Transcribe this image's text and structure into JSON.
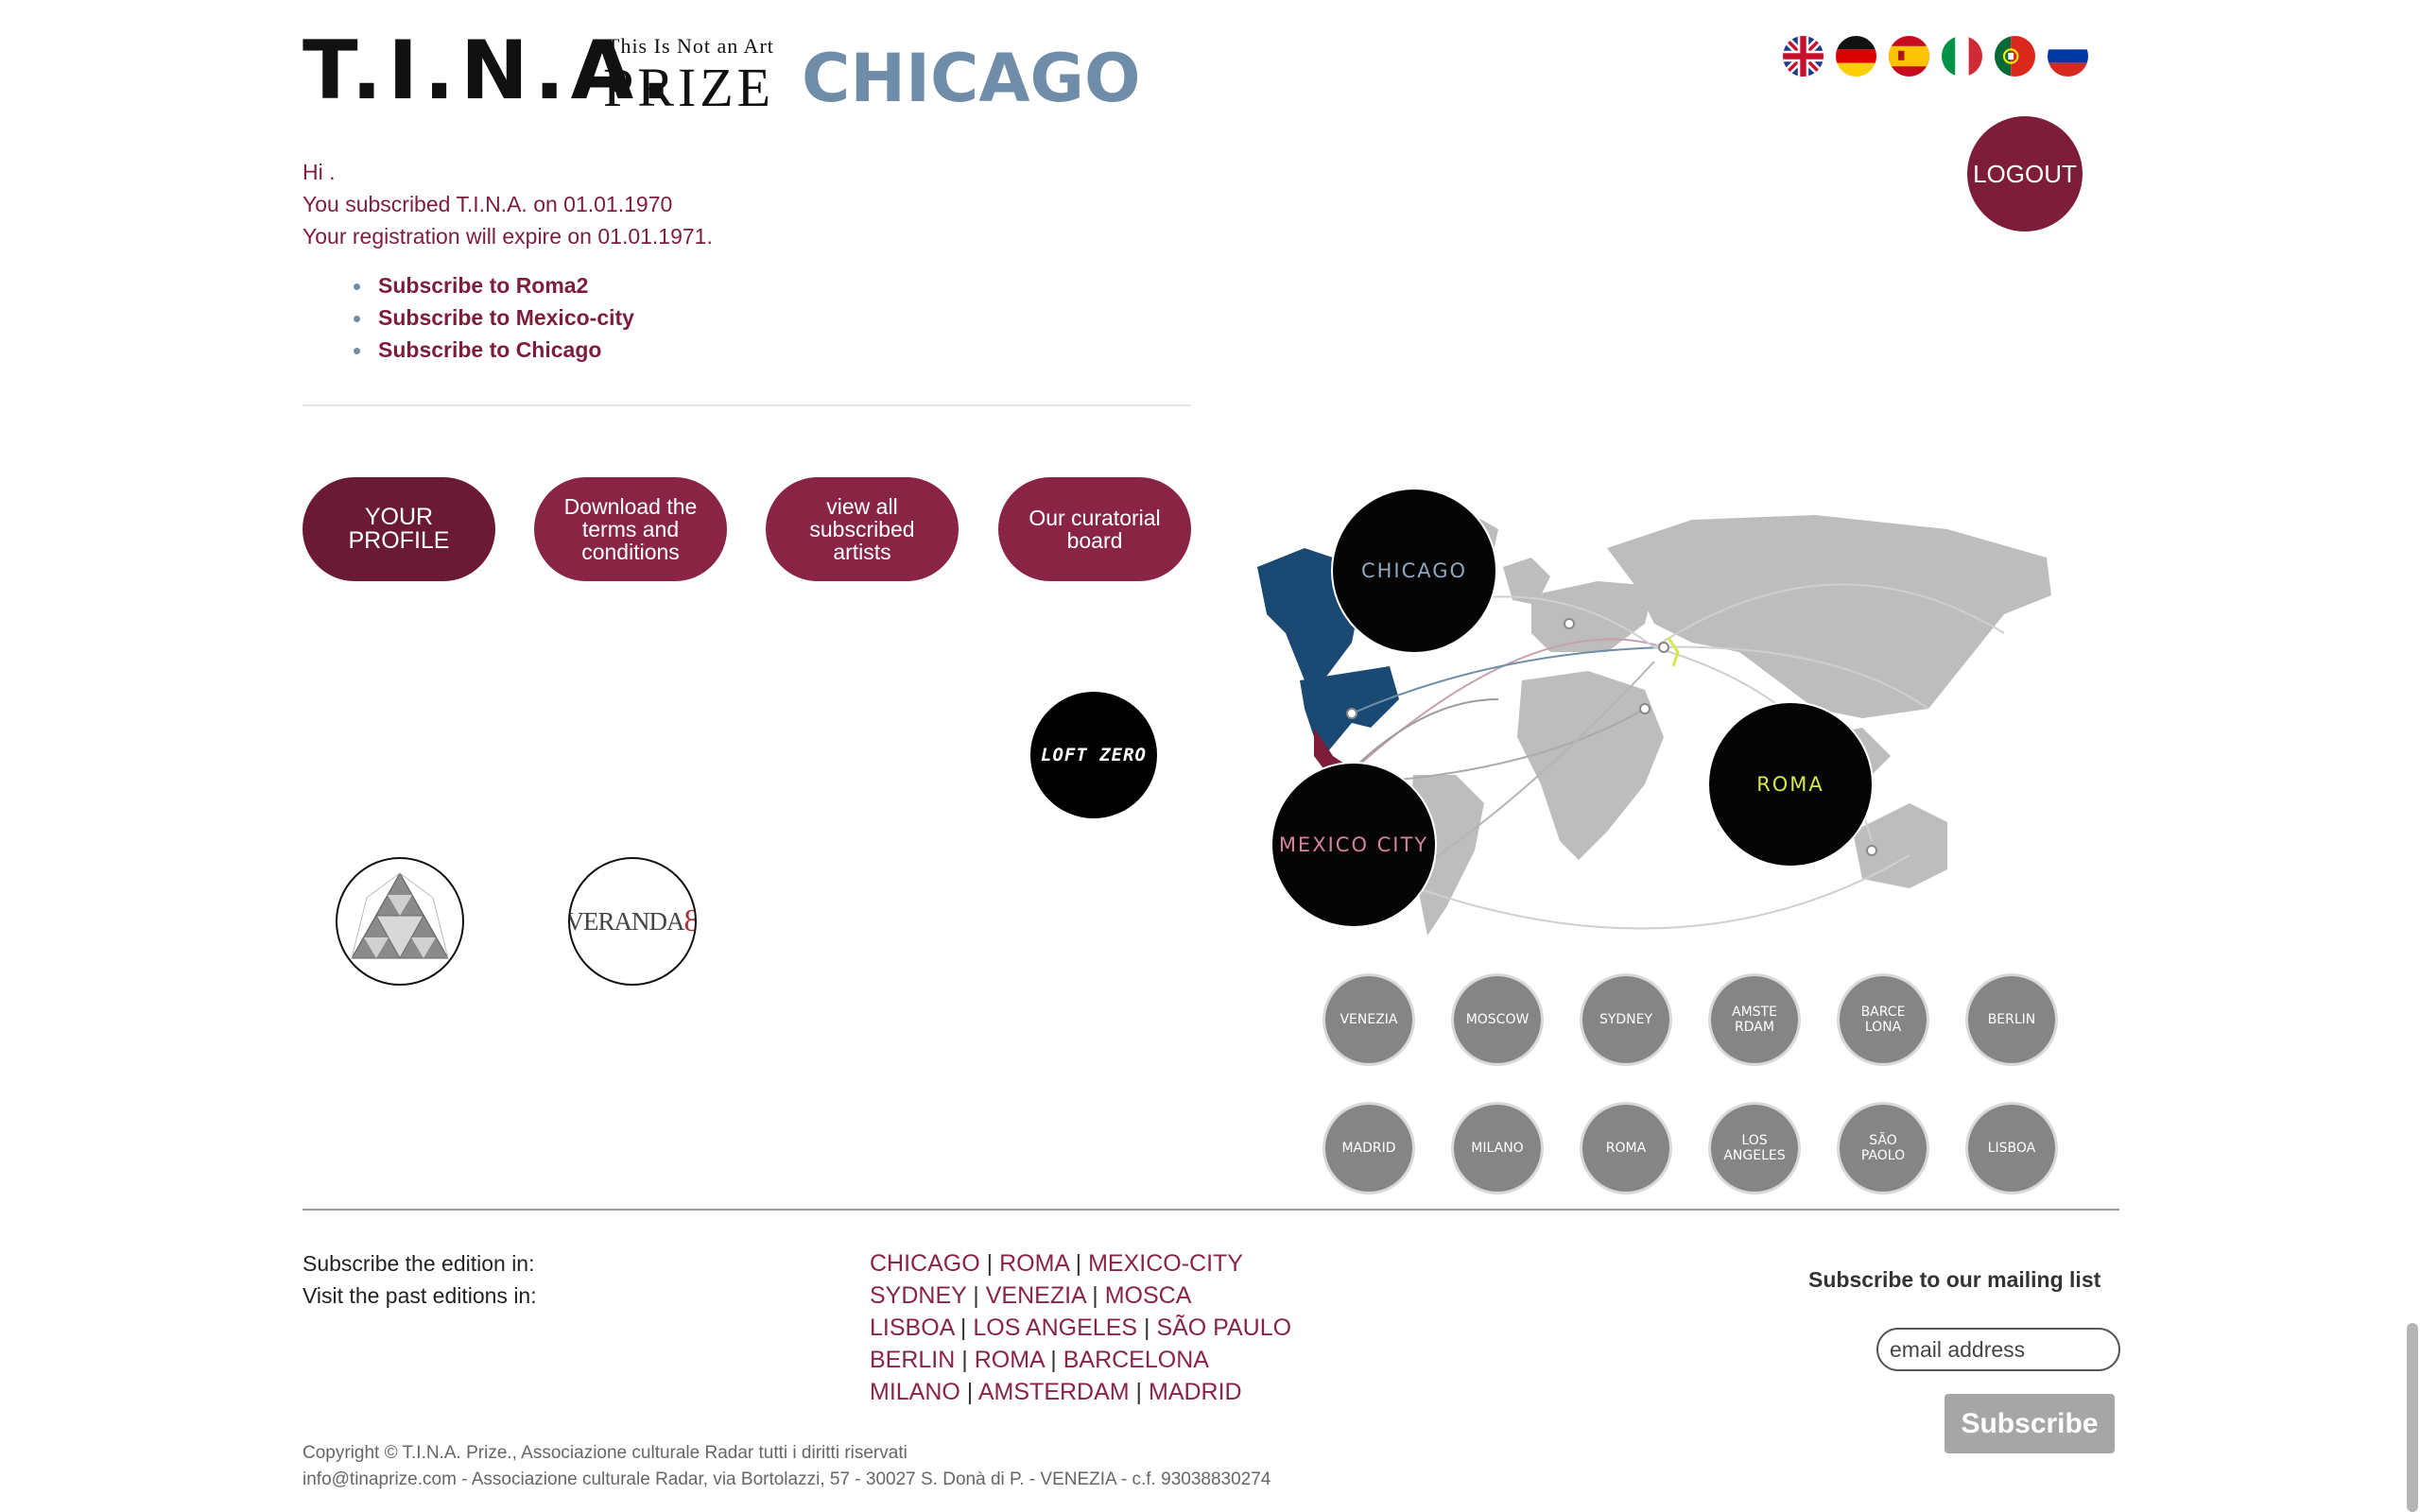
{
  "header": {
    "logo_tina": "T.I.N.A.",
    "logo_tagline": "This Is Not an Art",
    "logo_prize": "PRIZE",
    "logo_city": "CHICAGO",
    "logout_label": "LOGOUT",
    "languages": [
      "english",
      "german",
      "spanish",
      "italian",
      "portuguese",
      "russian"
    ]
  },
  "greeting": {
    "hi": "Hi .",
    "subscribed": "You subscribed T.I.N.A. on 01.01.1970",
    "expire": "Your registration will expire on 01.01.1971."
  },
  "subscribe_links": [
    "Subscribe to Roma2",
    "Subscribe to Mexico-city",
    "Subscribe to Chicago"
  ],
  "buttons": {
    "profile": "YOUR PROFILE",
    "terms": "Download the terms and conditions",
    "artists": "view all subscribed artists",
    "board": "Our curatorial board"
  },
  "partners": {
    "loft_zero": "LOFT ZERO",
    "veranda": "VERANDA",
    "veranda_num": "8"
  },
  "map": {
    "current_editions": [
      "CHICAGO",
      "MEXICO CITY",
      "ROMA"
    ],
    "past_editions": [
      [
        "VENEZIA"
      ],
      [
        "MOSCOW"
      ],
      [
        "SYDNEY"
      ],
      [
        "AMSTE",
        "RDAM"
      ],
      [
        "BARCE",
        "LONA"
      ],
      [
        "BERLIN"
      ],
      [
        "MADRID"
      ],
      [
        "MILANO"
      ],
      [
        "ROMA"
      ],
      [
        "LOS",
        "ANGELES"
      ],
      [
        "SÃO",
        "PAOLO"
      ],
      [
        "LISBOA"
      ]
    ]
  },
  "footer": {
    "subscribe_label": "Subscribe the edition in:",
    "visit_label": "Visit the past editions in:",
    "link_rows": [
      [
        "CHICAGO",
        "ROMA",
        "MEXICO-CITY"
      ],
      [
        "SYDNEY",
        "VENEZIA",
        "MOSCA"
      ],
      [
        "LISBOA",
        "LOS ANGELES",
        "SÃO PAULO"
      ],
      [
        "BERLIN",
        "ROMA",
        "BARCELONA"
      ],
      [
        "MILANO",
        "AMSTERDAM",
        "MADRID"
      ]
    ],
    "mailing_title": "Subscribe to our mailing list",
    "email_placeholder": "email address",
    "subscribe_button": "Subscribe",
    "copyright": "Copyright © T.I.N.A. Prize., Associazione culturale Radar tutti i diritti riservati",
    "address": "info@tinaprize.com - Associazione culturale Radar, via Bortolazzi, 57 - 30027 S. Donà di P. - VENEZIA - c.f. 93038830274"
  },
  "colors": {
    "accent": "#7d1d3a",
    "city_blue": "#6f8ca8",
    "map_grey": "#bdbdbd",
    "past_circle": "#858585"
  }
}
